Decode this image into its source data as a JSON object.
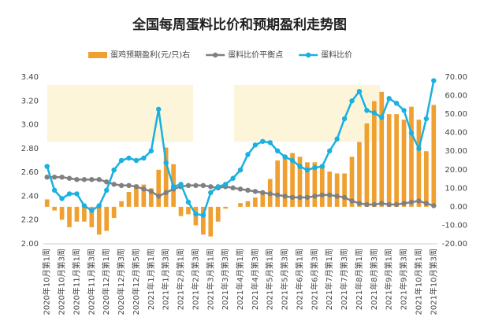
{
  "chart_data": {
    "type": "bar-line",
    "title": "全国每周蛋料比价和预期盈利走势图",
    "categories": [
      "2020年10月第1周",
      null,
      "2020年10月第3周",
      null,
      "2020年11月第1周",
      null,
      "2020年11月第3周",
      null,
      "2020年12月第1周",
      null,
      "2020年12月第3周",
      null,
      "2020年12月第5周",
      null,
      "2021年1月第1周",
      null,
      "2021年1月第3周",
      null,
      "2021年2月第1周",
      null,
      "2021年2月第3周",
      null,
      "2021年3月第1周",
      null,
      "2021年3月第3周",
      null,
      "2021年4月第1周",
      null,
      "2021年4月第3周",
      null,
      "2021年5月第1周",
      null,
      "2021年5月第3周",
      null,
      "2021年6月第1周",
      null,
      "2021年6月第3周",
      null,
      "2021年7月第1周",
      null,
      "2021年7月第3周",
      null,
      "2021年8月第1周",
      null,
      "2021年8月第3周",
      null,
      "2021年9月第1周",
      null,
      "2021年9月第3周",
      null,
      "2021年10月第1周",
      null,
      "2021年10月第3周"
    ],
    "series": [
      {
        "name": "蛋鸡预期盈利(元/只)右",
        "type": "bar",
        "axis": "y2",
        "color": "#f0a030",
        "values": [
          4,
          -2,
          -7,
          -11,
          -8,
          -8,
          -11,
          -15,
          -13,
          -6,
          3,
          8,
          12,
          12,
          10,
          20,
          32,
          23,
          -5,
          -4,
          -10,
          -15,
          -16,
          -8,
          -1,
          0,
          2,
          3,
          5,
          8,
          15,
          25,
          28,
          29,
          27,
          24,
          24,
          22,
          19,
          18,
          18,
          27,
          35,
          45,
          57,
          62,
          50,
          50,
          47,
          54,
          47,
          30,
          55
        ]
      },
      {
        "name": "蛋料比价平衡点",
        "type": "line",
        "color": "#808080",
        "values": [
          2.56,
          2.56,
          2.56,
          2.55,
          2.54,
          2.54,
          2.54,
          2.54,
          2.52,
          2.5,
          2.49,
          2.49,
          2.48,
          2.46,
          2.44,
          2.4,
          2.43,
          2.46,
          2.48,
          2.49,
          2.49,
          2.49,
          2.48,
          2.47,
          2.48,
          2.47,
          2.46,
          2.45,
          2.44,
          2.43,
          2.42,
          2.41,
          2.4,
          2.39,
          2.39,
          2.39,
          2.4,
          2.41,
          2.41,
          2.4,
          2.39,
          2.36,
          2.34,
          2.33,
          2.33,
          2.34,
          2.33,
          2.33,
          2.34,
          2.35,
          2.36,
          2.34,
          2.32
        ]
      },
      {
        "name": "蛋料比价",
        "type": "line",
        "color": "#1ab0e0",
        "values": [
          2.65,
          2.45,
          2.38,
          2.42,
          2.42,
          2.32,
          2.28,
          2.32,
          2.45,
          2.62,
          2.7,
          2.72,
          2.7,
          2.72,
          2.78,
          3.13,
          2.68,
          2.48,
          2.5,
          2.35,
          2.25,
          2.24,
          2.43,
          2.48,
          2.5,
          2.55,
          2.62,
          2.75,
          2.83,
          2.86,
          2.85,
          2.78,
          2.73,
          2.7,
          2.65,
          2.62,
          2.64,
          2.65,
          2.78,
          2.88,
          3.05,
          3.2,
          3.28,
          3.12,
          3.1,
          3.06,
          3.22,
          3.18,
          3.12,
          2.93,
          2.8,
          3.05,
          3.37
        ]
      }
    ],
    "ylim": [
      2.0,
      3.4
    ],
    "yticks": [
      {
        "value": 2.0,
        "label": "2.00"
      },
      {
        "value": 2.2,
        "label": "2.20"
      },
      {
        "value": 2.4,
        "label": "2.40"
      },
      {
        "value": 2.6,
        "label": "2.60"
      },
      {
        "value": 2.8,
        "label": "2.80"
      },
      {
        "value": 3.0,
        "label": "3.00"
      },
      {
        "value": 3.2,
        "label": "3.20"
      },
      {
        "value": 3.4,
        "label": "3.40"
      }
    ],
    "y2lim": [
      -20,
      70
    ],
    "y2ticks": [
      {
        "value": -20,
        "label": "-20.00"
      },
      {
        "value": -10,
        "label": "-10.00"
      },
      {
        "value": 0,
        "label": "0.00"
      },
      {
        "value": 10,
        "label": "10.00"
      },
      {
        "value": 20,
        "label": "20.00"
      },
      {
        "value": 30,
        "label": "30.00"
      },
      {
        "value": 40,
        "label": "40.00"
      },
      {
        "value": 50,
        "label": "50.00"
      },
      {
        "value": 60,
        "label": "60.00"
      },
      {
        "value": 70,
        "label": "70.00"
      }
    ],
    "legend": "top"
  }
}
